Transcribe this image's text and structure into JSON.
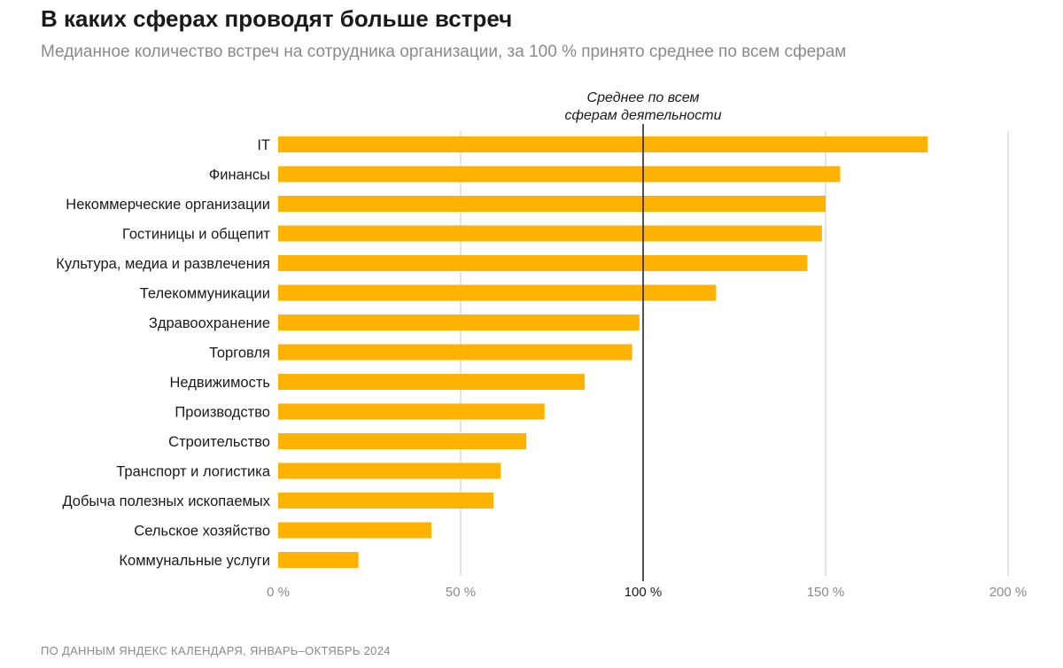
{
  "title": "В каких сферах проводят больше встреч",
  "subtitle": "Медианное количество встреч на сотрудника организации, за 100 % принято среднее по всем сферам",
  "source": "ПО ДАННЫМ ЯНДЕКС КАЛЕНДАРЯ, ЯНВАРЬ–ОКТЯБРЬ 2024",
  "colors": {
    "bar": "#FFB300",
    "grid": "#c8c8c8",
    "reference": "#1a1a1a"
  },
  "chart_data": {
    "type": "bar",
    "orientation": "horizontal",
    "title": "В каких сферах проводят больше встреч",
    "xlabel": "",
    "ylabel": "",
    "xlim": [
      0,
      200
    ],
    "ticks": [
      {
        "value": 0,
        "label": "0 %"
      },
      {
        "value": 50,
        "label": "50 %"
      },
      {
        "value": 100,
        "label": "100 %"
      },
      {
        "value": 150,
        "label": "150 %"
      },
      {
        "value": 200,
        "label": "200 %"
      }
    ],
    "reference": {
      "value": 100,
      "label_lines": [
        "Среднее по всем",
        "сферам деятельности"
      ]
    },
    "categories": [
      "IT",
      "Финансы",
      "Некоммерческие организации",
      "Гостиницы и общепит",
      "Культура, медиа и развлечения",
      "Телекоммуникации",
      "Здравоохранение",
      "Торговля",
      "Недвижимость",
      "Производство",
      "Строительство",
      "Транспорт и логистика",
      "Добыча полезных ископаемых",
      "Сельское хозяйство",
      "Коммунальные услуги"
    ],
    "values": [
      178,
      154,
      150,
      149,
      145,
      120,
      99,
      97,
      84,
      73,
      68,
      61,
      59,
      42,
      22
    ]
  }
}
